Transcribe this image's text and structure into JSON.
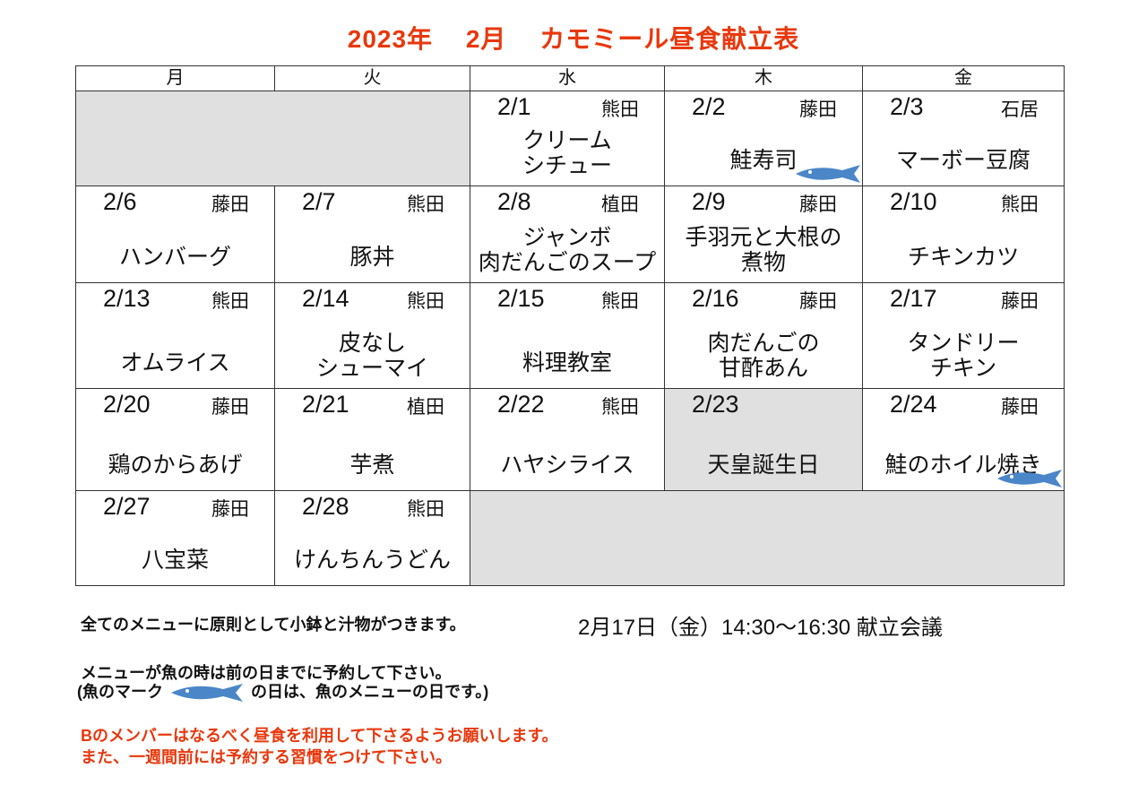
{
  "title": {
    "year": "2023年",
    "month": "2月",
    "name": "カモミール昼食献立表"
  },
  "calendar": {
    "weekdays": [
      "月",
      "火",
      "水",
      "木",
      "金"
    ],
    "weeks": [
      [
        {
          "blank": true,
          "span": 2
        },
        {
          "date": "2/1",
          "cook": "熊田",
          "dish": [
            "クリーム",
            "シチュー"
          ]
        },
        {
          "date": "2/2",
          "cook": "藤田",
          "dish": [
            "鮭寿司"
          ],
          "fish": true
        },
        {
          "date": "2/3",
          "cook": "石居",
          "dish": [
            "マーボー豆腐"
          ]
        }
      ],
      [
        {
          "date": "2/6",
          "cook": "藤田",
          "dish": [
            "ハンバーグ"
          ]
        },
        {
          "date": "2/7",
          "cook": "熊田",
          "dish": [
            "豚丼"
          ]
        },
        {
          "date": "2/8",
          "cook": "植田",
          "dish": [
            "ジャンボ",
            "肉だんごのスープ"
          ]
        },
        {
          "date": "2/9",
          "cook": "藤田",
          "dish": [
            "手羽元と大根の",
            "煮物"
          ]
        },
        {
          "date": "2/10",
          "cook": "熊田",
          "dish": [
            "チキンカツ"
          ]
        }
      ],
      [
        {
          "date": "2/13",
          "cook": "熊田",
          "dish": [
            "オムライス"
          ]
        },
        {
          "date": "2/14",
          "cook": "熊田",
          "dish": [
            "皮なし",
            "シューマイ"
          ]
        },
        {
          "date": "2/15",
          "cook": "熊田",
          "dish": [
            "料理教室"
          ]
        },
        {
          "date": "2/16",
          "cook": "藤田",
          "dish": [
            "肉だんごの",
            "甘酢あん"
          ]
        },
        {
          "date": "2/17",
          "cook": "藤田",
          "dish": [
            "タンドリー",
            "チキン"
          ]
        }
      ],
      [
        {
          "date": "2/20",
          "cook": "藤田",
          "dish": [
            "鶏のからあげ"
          ]
        },
        {
          "date": "2/21",
          "cook": "植田",
          "dish": [
            "芋煮"
          ]
        },
        {
          "date": "2/22",
          "cook": "熊田",
          "dish": [
            "ハヤシライス"
          ]
        },
        {
          "date": "2/23",
          "dish": [
            "天皇誕生日"
          ],
          "holiday": true
        },
        {
          "date": "2/24",
          "cook": "藤田",
          "dish": [
            "鮭のホイル焼き"
          ],
          "fish": true
        }
      ],
      [
        {
          "date": "2/27",
          "cook": "藤田",
          "dish": [
            "八宝菜"
          ]
        },
        {
          "date": "2/28",
          "cook": "熊田",
          "dish": [
            "けんちんうどん"
          ]
        },
        {
          "blank": true,
          "span": 3
        }
      ]
    ]
  },
  "notes": {
    "line1": "全てのメニューに原則として小鉢と汁物がつきます。",
    "meeting": "2月17日（金）14:30～16:30 献立会議",
    "line2": "メニューが魚の時は前の日までに予約して下さい。",
    "line3_a": "(魚のマーク",
    "line3_b": "の日は、魚のメニューの日です。)",
    "line4": "Bのメンバーはなるべく昼食を利用して下さるようお願いします。",
    "line5": "また、一週間前には予約する習慣をつけて下さい。"
  },
  "colors": {
    "accent": "#e8380d",
    "fish": "#4a86c8",
    "blank": "#e0e0e0"
  }
}
